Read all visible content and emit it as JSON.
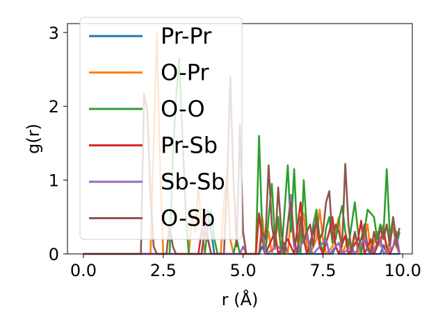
{
  "chart_data": {
    "type": "line",
    "xlabel": "r (Å)",
    "ylabel": "g(r)",
    "xlim": [
      -0.5,
      10.3
    ],
    "ylim": [
      0,
      3.12
    ],
    "xticks": [
      0.0,
      2.5,
      5.0,
      7.5,
      10.0
    ],
    "xtick_labels": [
      "0.0",
      "2.5",
      "5.0",
      "7.5",
      "10.0"
    ],
    "yticks": [
      0,
      1,
      2,
      3
    ],
    "ytick_labels": [
      "0",
      "1",
      "2",
      "3"
    ],
    "grid": false,
    "legend": "top-left",
    "series": [
      {
        "name": "Pr-Pr",
        "color": "#1f77b4",
        "points": [
          [
            0,
            0
          ],
          [
            3.7,
            0
          ],
          [
            3.8,
            0.35
          ],
          [
            3.9,
            0.6
          ],
          [
            4.0,
            0.3
          ],
          [
            4.1,
            0
          ],
          [
            5.5,
            0
          ],
          [
            5.6,
            0.1
          ],
          [
            5.7,
            0
          ],
          [
            6.2,
            0
          ],
          [
            6.3,
            0.15
          ],
          [
            6.4,
            0
          ],
          [
            7.8,
            0
          ],
          [
            7.9,
            0.1
          ],
          [
            8.0,
            0
          ],
          [
            9.3,
            0
          ],
          [
            9.4,
            0.12
          ],
          [
            9.5,
            0
          ],
          [
            9.9,
            0
          ]
        ]
      },
      {
        "name": "O-Pr",
        "color": "#ff7f0e",
        "points": [
          [
            0,
            0
          ],
          [
            2.1,
            0
          ],
          [
            2.2,
            1.5
          ],
          [
            2.3,
            3.0
          ],
          [
            2.4,
            1.2
          ],
          [
            2.5,
            0
          ],
          [
            3.3,
            0
          ],
          [
            3.4,
            0.5
          ],
          [
            3.5,
            0.3
          ],
          [
            3.6,
            0.9
          ],
          [
            3.7,
            0.4
          ],
          [
            3.8,
            0
          ],
          [
            4.3,
            0
          ],
          [
            4.4,
            0.7
          ],
          [
            4.5,
            1.1
          ],
          [
            4.6,
            0.2
          ],
          [
            4.7,
            0
          ],
          [
            5.5,
            0
          ],
          [
            5.6,
            0.5
          ],
          [
            5.7,
            0.1
          ],
          [
            5.8,
            0.3
          ],
          [
            5.9,
            0
          ],
          [
            6.0,
            0.2
          ],
          [
            6.1,
            0.4
          ],
          [
            6.2,
            0
          ],
          [
            6.4,
            0
          ],
          [
            6.5,
            0.5
          ],
          [
            6.6,
            0.1
          ],
          [
            6.7,
            0
          ],
          [
            6.8,
            0.3
          ],
          [
            6.9,
            0.55
          ],
          [
            7.0,
            0.1
          ],
          [
            7.1,
            0
          ],
          [
            7.3,
            0.2
          ],
          [
            7.4,
            0.6
          ],
          [
            7.5,
            0.2
          ],
          [
            7.6,
            0
          ],
          [
            7.8,
            0.1
          ],
          [
            7.9,
            0.3
          ],
          [
            8.0,
            0.5
          ],
          [
            8.1,
            0
          ],
          [
            8.3,
            0.2
          ],
          [
            8.4,
            0.1
          ],
          [
            8.5,
            0.3
          ],
          [
            8.6,
            0
          ],
          [
            8.8,
            0.2
          ],
          [
            8.9,
            0.4
          ],
          [
            9.0,
            0
          ],
          [
            9.2,
            0.3
          ],
          [
            9.3,
            0.1
          ],
          [
            9.4,
            0.4
          ],
          [
            9.5,
            0
          ],
          [
            9.6,
            0.2
          ],
          [
            9.7,
            0.35
          ],
          [
            9.8,
            0.1
          ],
          [
            9.9,
            0
          ]
        ]
      },
      {
        "name": "O-O",
        "color": "#2ca02c",
        "points": [
          [
            0,
            0
          ],
          [
            2.7,
            0
          ],
          [
            2.8,
            1.3
          ],
          [
            2.9,
            2.1
          ],
          [
            3.0,
            2.65
          ],
          [
            3.1,
            1.6
          ],
          [
            3.2,
            0.6
          ],
          [
            3.3,
            0
          ],
          [
            3.8,
            0
          ],
          [
            3.9,
            0.4
          ],
          [
            4.0,
            0.6
          ],
          [
            4.1,
            0.2
          ],
          [
            4.2,
            0
          ],
          [
            4.7,
            0
          ],
          [
            4.8,
            0.2
          ],
          [
            4.9,
            0
          ],
          [
            5.4,
            0
          ],
          [
            5.5,
            1.6
          ],
          [
            5.6,
            0.3
          ],
          [
            5.7,
            0
          ],
          [
            5.8,
            0.5
          ],
          [
            5.9,
            0.95
          ],
          [
            6.0,
            0.2
          ],
          [
            6.1,
            0.5
          ],
          [
            6.2,
            0
          ],
          [
            6.3,
            0.6
          ],
          [
            6.4,
            1.2
          ],
          [
            6.5,
            0.3
          ],
          [
            6.6,
            1.15
          ],
          [
            6.7,
            0.2
          ],
          [
            6.8,
            0
          ],
          [
            6.9,
            1.0
          ],
          [
            7.0,
            0.3
          ],
          [
            7.1,
            0
          ],
          [
            7.2,
            0.4
          ],
          [
            7.3,
            0.6
          ],
          [
            7.4,
            0.2
          ],
          [
            7.5,
            0
          ],
          [
            7.6,
            0.35
          ],
          [
            7.7,
            0.5
          ],
          [
            7.8,
            0.15
          ],
          [
            7.9,
            0.2
          ],
          [
            8.0,
            0.45
          ],
          [
            8.1,
            0.65
          ],
          [
            8.2,
            0.3
          ],
          [
            8.3,
            0.1
          ],
          [
            8.4,
            0.4
          ],
          [
            8.5,
            0.7
          ],
          [
            8.6,
            0.3
          ],
          [
            8.7,
            0
          ],
          [
            8.8,
            0.3
          ],
          [
            8.9,
            0.6
          ],
          [
            9.0,
            0.55
          ],
          [
            9.1,
            0.5
          ],
          [
            9.2,
            0.2
          ],
          [
            9.3,
            0.4
          ],
          [
            9.4,
            0.3
          ],
          [
            9.5,
            1.15
          ],
          [
            9.6,
            0.2
          ],
          [
            9.7,
            0.5
          ],
          [
            9.8,
            0.1
          ],
          [
            9.9,
            0.3
          ]
        ]
      },
      {
        "name": "Pr-Sb",
        "color": "#d62728",
        "points": [
          [
            0,
            0
          ],
          [
            3.6,
            0
          ],
          [
            3.7,
            0.3
          ],
          [
            3.8,
            0.6
          ],
          [
            3.9,
            0.2
          ],
          [
            4.0,
            0
          ],
          [
            5.4,
            0
          ],
          [
            5.5,
            0.55
          ],
          [
            5.6,
            0.2
          ],
          [
            5.7,
            0
          ],
          [
            6.0,
            0.3
          ],
          [
            6.1,
            0
          ],
          [
            6.4,
            0.2
          ],
          [
            6.5,
            0.1
          ],
          [
            6.6,
            0
          ],
          [
            6.7,
            0.35
          ],
          [
            6.8,
            0.7
          ],
          [
            6.9,
            0.2
          ],
          [
            7.0,
            0
          ],
          [
            7.2,
            0.3
          ],
          [
            7.3,
            0.45
          ],
          [
            7.4,
            0.1
          ],
          [
            7.5,
            0
          ],
          [
            7.7,
            0.3
          ],
          [
            7.8,
            0.5
          ],
          [
            7.9,
            0.1
          ],
          [
            8.0,
            0
          ],
          [
            8.2,
            0.25
          ],
          [
            8.3,
            0
          ],
          [
            8.6,
            0.2
          ],
          [
            8.7,
            0.45
          ],
          [
            8.8,
            0
          ],
          [
            9.0,
            0.2
          ],
          [
            9.1,
            0
          ],
          [
            9.4,
            0.3
          ],
          [
            9.5,
            0.1
          ],
          [
            9.6,
            0
          ],
          [
            9.8,
            0.2
          ],
          [
            9.9,
            0
          ]
        ]
      },
      {
        "name": "Sb-Sb",
        "color": "#9467bd",
        "points": [
          [
            0,
            0
          ],
          [
            4.9,
            0
          ],
          [
            5.0,
            0.1
          ],
          [
            5.1,
            0
          ],
          [
            5.5,
            0
          ],
          [
            5.6,
            0.3
          ],
          [
            5.7,
            0
          ],
          [
            6.1,
            0.1
          ],
          [
            6.2,
            0.05
          ],
          [
            6.3,
            0
          ],
          [
            6.5,
            0.8
          ],
          [
            6.6,
            0.1
          ],
          [
            6.7,
            0
          ],
          [
            7.0,
            0.3
          ],
          [
            7.1,
            0.05
          ],
          [
            7.2,
            0
          ],
          [
            7.6,
            0.2
          ],
          [
            7.7,
            0
          ],
          [
            8.0,
            0.15
          ],
          [
            8.1,
            0
          ],
          [
            8.4,
            0.1
          ],
          [
            8.5,
            0
          ],
          [
            8.8,
            0.2
          ],
          [
            8.9,
            0.05
          ],
          [
            9.0,
            0
          ],
          [
            9.3,
            0.2
          ],
          [
            9.4,
            0
          ],
          [
            9.7,
            0.1
          ],
          [
            9.8,
            0.3
          ],
          [
            9.9,
            0
          ]
        ]
      },
      {
        "name": "O-Sb",
        "color": "#8c564b",
        "points": [
          [
            0,
            0
          ],
          [
            1.8,
            0
          ],
          [
            1.9,
            2.17
          ],
          [
            2.0,
            1.95
          ],
          [
            2.1,
            0.8
          ],
          [
            2.2,
            0.1
          ],
          [
            2.3,
            0
          ],
          [
            2.6,
            0
          ],
          [
            2.7,
            0.4
          ],
          [
            2.8,
            0.1
          ],
          [
            2.9,
            0
          ],
          [
            3.7,
            0
          ],
          [
            3.8,
            0.3
          ],
          [
            3.9,
            0.2
          ],
          [
            4.0,
            0
          ],
          [
            4.4,
            0
          ],
          [
            4.5,
            0.95
          ],
          [
            4.6,
            2.4
          ],
          [
            4.7,
            1.0
          ],
          [
            4.8,
            0.1
          ],
          [
            4.9,
            1.75
          ],
          [
            5.0,
            0.3
          ],
          [
            5.1,
            0
          ],
          [
            5.5,
            0
          ],
          [
            5.6,
            0.3
          ],
          [
            5.7,
            0.2
          ],
          [
            5.8,
            1.2
          ],
          [
            5.9,
            0.4
          ],
          [
            6.0,
            0.1
          ],
          [
            6.1,
            0.9
          ],
          [
            6.2,
            0.3
          ],
          [
            6.3,
            0
          ],
          [
            6.4,
            0.4
          ],
          [
            6.5,
            0.7
          ],
          [
            6.6,
            0.2
          ],
          [
            6.7,
            0
          ],
          [
            6.8,
            0.5
          ],
          [
            6.9,
            0.15
          ],
          [
            7.0,
            0.3
          ],
          [
            7.1,
            0.4
          ],
          [
            7.2,
            0.1
          ],
          [
            7.3,
            0.5
          ],
          [
            7.4,
            0.2
          ],
          [
            7.5,
            0.3
          ],
          [
            7.6,
            0.7
          ],
          [
            7.7,
            0.85
          ],
          [
            7.8,
            0.2
          ],
          [
            7.9,
            0.4
          ],
          [
            8.0,
            0.3
          ],
          [
            8.1,
            0.1
          ],
          [
            8.2,
            1.22
          ],
          [
            8.3,
            0.4
          ],
          [
            8.4,
            0
          ],
          [
            8.5,
            0.3
          ],
          [
            8.6,
            0.1
          ],
          [
            8.7,
            0.2
          ],
          [
            8.8,
            0.4
          ],
          [
            8.9,
            0.1
          ],
          [
            9.0,
            0
          ],
          [
            9.1,
            0.3
          ],
          [
            9.2,
            0.1
          ],
          [
            9.3,
            0.35
          ],
          [
            9.4,
            0.2
          ],
          [
            9.5,
            0.4
          ],
          [
            9.6,
            0.1
          ],
          [
            9.7,
            0.5
          ],
          [
            9.8,
            0.2
          ],
          [
            9.9,
            0.35
          ]
        ]
      }
    ]
  }
}
